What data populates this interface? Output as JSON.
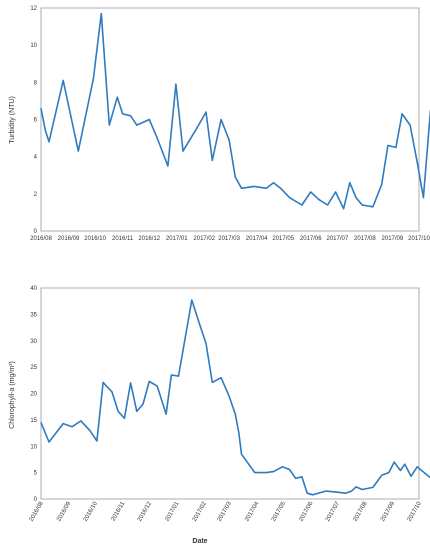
{
  "chart_data": [
    {
      "type": "line",
      "title": "",
      "xlabel": "",
      "ylabel": "Turbidity (NTU)",
      "ylim": [
        0,
        12
      ],
      "yticks": [
        0,
        2,
        4,
        6,
        8,
        10,
        12
      ],
      "xlim": [
        "2016/08",
        "2017/10"
      ],
      "xticks": [
        "2016/08",
        "2016/09",
        "2016/10",
        "2016/11",
        "2016/12",
        "2017/01",
        "2017/02",
        "2017/03",
        "2017/04",
        "2017/05",
        "2017/06",
        "2017/07",
        "2017/08",
        "2017/09",
        "2017/10"
      ],
      "grid": false,
      "color": "#2e7bbf",
      "series": [
        {
          "x": [
            "2016/08/01",
            "2016/08/06",
            "2016/08/10",
            "2016/08/26",
            "2016/09/12",
            "2016/09/29",
            "2016/10/08",
            "2016/10/17",
            "2016/10/26",
            "2016/11/01",
            "2016/11/10",
            "2016/11/17",
            "2016/12/01",
            "2016/12/10",
            "2016/12/22",
            "2016/12/31",
            "2017/01/08",
            "2017/01/22",
            "2017/02/03",
            "2017/02/10",
            "2017/02/20",
            "2017/03/01",
            "2017/03/08",
            "2017/03/15",
            "2017/03/29",
            "2017/04/12",
            "2017/04/20",
            "2017/04/28",
            "2017/05/08",
            "2017/05/22",
            "2017/06/01",
            "2017/06/10",
            "2017/06/20",
            "2017/06/29",
            "2017/07/08",
            "2017/07/15",
            "2017/07/22",
            "2017/07/29",
            "2017/08/10",
            "2017/08/20",
            "2017/08/27",
            "2017/09/05",
            "2017/09/12",
            "2017/09/21",
            "2017/09/29",
            "2017/10/06",
            "2017/10/14"
          ],
          "values": [
            6.6,
            5.4,
            4.8,
            8.1,
            4.3,
            8.2,
            11.7,
            5.7,
            7.2,
            6.3,
            6.2,
            5.7,
            6.0,
            5.0,
            3.5,
            7.9,
            4.3,
            5.4,
            6.4,
            3.8,
            6.0,
            4.9,
            2.9,
            2.3,
            2.4,
            2.3,
            2.6,
            2.3,
            1.8,
            1.4,
            2.1,
            1.7,
            1.4,
            2.1,
            1.2,
            2.6,
            1.8,
            1.4,
            1.3,
            2.5,
            4.6,
            4.5,
            6.3,
            5.7,
            3.7,
            1.8,
            6.5
          ]
        }
      ]
    },
    {
      "type": "line",
      "title": "",
      "xlabel": "Date",
      "ylabel": "Chlorophyll-a (mg/m³)",
      "ylim": [
        0,
        40
      ],
      "yticks": [
        0,
        5,
        10,
        15,
        20,
        25,
        30,
        35,
        40
      ],
      "xlim": [
        "2016/08",
        "2017/10"
      ],
      "xticks": [
        "2016/08",
        "2016/09",
        "2016/10",
        "2016/11",
        "2016/12",
        "2017/01",
        "2017/02",
        "2017/03",
        "2017/04",
        "2017/05",
        "2017/06",
        "2017/07",
        "2017/08",
        "2017/09",
        "2017/10"
      ],
      "grid": false,
      "color": "#2e7bbf",
      "series": [
        {
          "x": [
            "2016/08/01",
            "2016/08/10",
            "2016/08/26",
            "2016/09/05",
            "2016/09/15",
            "2016/09/25",
            "2016/10/03",
            "2016/10/10",
            "2016/10/20",
            "2016/10/27",
            "2016/11/03",
            "2016/11/10",
            "2016/11/17",
            "2016/11/24",
            "2016/12/01",
            "2016/12/10",
            "2016/12/20",
            "2016/12/26",
            "2017/01/03",
            "2017/01/18",
            "2017/01/27",
            "2017/02/03",
            "2017/02/10",
            "2017/02/20",
            "2017/03/01",
            "2017/03/08",
            "2017/03/12",
            "2017/03/15",
            "2017/03/30",
            "2017/04/12",
            "2017/04/20",
            "2017/04/30",
            "2017/05/08",
            "2017/05/15",
            "2017/05/22",
            "2017/05/28",
            "2017/06/03",
            "2017/06/18",
            "2017/06/30",
            "2017/07/10",
            "2017/07/17",
            "2017/07/22",
            "2017/07/29",
            "2017/08/10",
            "2017/08/20",
            "2017/08/28",
            "2017/09/03",
            "2017/09/10",
            "2017/09/15",
            "2017/09/22",
            "2017/09/29",
            "2017/10/14"
          ],
          "values": [
            14.5,
            10.8,
            14.3,
            13.7,
            14.8,
            13.0,
            11.0,
            22.1,
            20.3,
            16.6,
            15.3,
            22.0,
            16.6,
            18.0,
            22.3,
            21.4,
            16.1,
            23.5,
            23.3,
            37.7,
            33.0,
            29.5,
            22.1,
            23.0,
            19.5,
            16.1,
            12.5,
            8.5,
            5.0,
            5.0,
            5.2,
            6.1,
            5.6,
            3.9,
            4.2,
            1.1,
            0.8,
            1.5,
            1.3,
            1.1,
            1.5,
            2.3,
            1.8,
            2.2,
            4.5,
            5.0,
            7.0,
            5.4,
            6.6,
            4.3,
            6.1,
            4.0
          ]
        }
      ]
    }
  ]
}
